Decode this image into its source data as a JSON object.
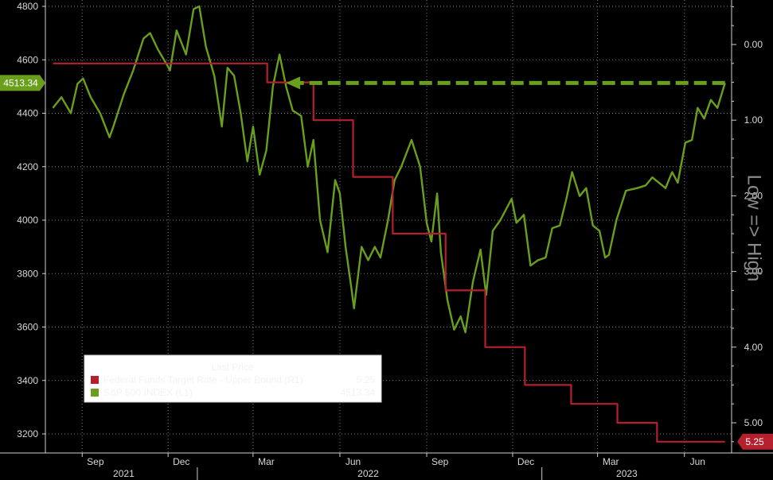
{
  "chart_data": {
    "type": "line",
    "title": "",
    "side_label": "Low => High",
    "x_axis": {
      "month_labels": [
        "Sep",
        "Dec",
        "Mar",
        "Jun",
        "Sep",
        "Dec",
        "Mar",
        "Jun"
      ],
      "year_labels": [
        "2021",
        "2022",
        "2023"
      ]
    },
    "left_axis": {
      "range": [
        3100,
        4800
      ],
      "ticks": [
        "3200",
        "3400",
        "3600",
        "3800",
        "4000",
        "4200",
        "4400",
        "4600",
        "4800"
      ],
      "last_value_label": "4513.34"
    },
    "right_axis": {
      "range": [
        -0.5,
        5.25
      ],
      "inverted": true,
      "ticks": [
        "0.00",
        "1.00",
        "2.00",
        "3.00",
        "4.00",
        "5.00"
      ],
      "last_value_label": "5.25"
    },
    "grid": true,
    "legend": {
      "placement": "bottom-left",
      "header": "Last Price",
      "entries": [
        {
          "name": "Federal Funds Target Rate - Upper Bound  (R1)",
          "value": "5.25",
          "color": "#b5202e"
        },
        {
          "name": "S&P 500 INDEX  (L1)",
          "value": "4513.34",
          "color": "#6a9f1e"
        }
      ]
    },
    "series": [
      {
        "name": "S&P 500 INDEX  (L1)",
        "axis": "left",
        "color": "#6a9f1e",
        "x": [
          "2021-08-01",
          "2021-08-10",
          "2021-08-20",
          "2021-08-27",
          "2021-09-02",
          "2021-09-10",
          "2021-09-20",
          "2021-09-30",
          "2021-10-04",
          "2021-10-15",
          "2021-10-25",
          "2021-11-05",
          "2021-11-12",
          "2021-11-20",
          "2021-11-30",
          "2021-12-03",
          "2021-12-10",
          "2021-12-20",
          "2021-12-28",
          "2022-01-03",
          "2022-01-10",
          "2022-01-19",
          "2022-01-27",
          "2022-02-02",
          "2022-02-09",
          "2022-02-16",
          "2022-02-23",
          "2022-03-01",
          "2022-03-08",
          "2022-03-15",
          "2022-03-22",
          "2022-03-29",
          "2022-04-05",
          "2022-04-12",
          "2022-04-21",
          "2022-04-28",
          "2022-05-04",
          "2022-05-11",
          "2022-05-19",
          "2022-05-27",
          "2022-06-01",
          "2022-06-07",
          "2022-06-13",
          "2022-06-16",
          "2022-06-24",
          "2022-07-01",
          "2022-07-08",
          "2022-07-14",
          "2022-07-22",
          "2022-07-29",
          "2022-08-05",
          "2022-08-16",
          "2022-08-25",
          "2022-09-01",
          "2022-09-06",
          "2022-09-12",
          "2022-09-16",
          "2022-09-23",
          "2022-09-30",
          "2022-10-07",
          "2022-10-12",
          "2022-10-20",
          "2022-10-28",
          "2022-11-03",
          "2022-11-10",
          "2022-11-18",
          "2022-11-30",
          "2022-12-05",
          "2022-12-13",
          "2022-12-20",
          "2022-12-28",
          "2023-01-05",
          "2023-01-12",
          "2023-01-20",
          "2023-01-27",
          "2023-02-02",
          "2023-02-10",
          "2023-02-17",
          "2023-02-24",
          "2023-03-03",
          "2023-03-09",
          "2023-03-13",
          "2023-03-21",
          "2023-03-31",
          "2023-04-12",
          "2023-04-21",
          "2023-04-28",
          "2023-05-05",
          "2023-05-12",
          "2023-05-19",
          "2023-05-25",
          "2023-06-02",
          "2023-06-09",
          "2023-06-15",
          "2023-06-22",
          "2023-06-29",
          "2023-07-06",
          "2023-07-14"
        ],
        "y": [
          4420,
          4460,
          4400,
          4510,
          4530,
          4460,
          4400,
          4310,
          4350,
          4470,
          4560,
          4680,
          4700,
          4640,
          4580,
          4560,
          4710,
          4620,
          4790,
          4800,
          4650,
          4540,
          4350,
          4570,
          4540,
          4400,
          4220,
          4350,
          4170,
          4260,
          4500,
          4620,
          4500,
          4410,
          4390,
          4200,
          4300,
          4000,
          3880,
          4150,
          4100,
          3900,
          3750,
          3670,
          3900,
          3850,
          3900,
          3860,
          4000,
          4150,
          4200,
          4300,
          4200,
          3990,
          3920,
          4100,
          3880,
          3700,
          3590,
          3640,
          3580,
          3770,
          3890,
          3720,
          3960,
          4000,
          4080,
          3990,
          4020,
          3830,
          3850,
          3860,
          3970,
          3980,
          4080,
          4180,
          4090,
          4120,
          3980,
          3960,
          3860,
          3870,
          4000,
          4110,
          4120,
          4130,
          4160,
          4140,
          4120,
          4180,
          4140,
          4290,
          4300,
          4420,
          4380,
          4450,
          4420,
          4513
        ]
      },
      {
        "name": "Federal Funds Target Rate - Upper Bound  (R1)",
        "axis": "right",
        "color": "#b5202e",
        "step": true,
        "x": [
          "2021-08-01",
          "2022-03-16",
          "2022-05-04",
          "2022-06-15",
          "2022-07-27",
          "2022-09-21",
          "2022-11-02",
          "2022-12-14",
          "2023-02-01",
          "2023-03-22",
          "2023-05-03",
          "2023-07-14"
        ],
        "y": [
          0.25,
          0.5,
          1.0,
          1.75,
          2.5,
          3.25,
          4.0,
          4.5,
          4.75,
          5.0,
          5.25,
          5.25
        ]
      }
    ],
    "annotation": {
      "type": "dashed-arrow",
      "axis": "left",
      "value": 4513.34,
      "from_date": "2023-07-14",
      "to_date": "2022-03-29",
      "color": "#6a9f1e"
    }
  }
}
